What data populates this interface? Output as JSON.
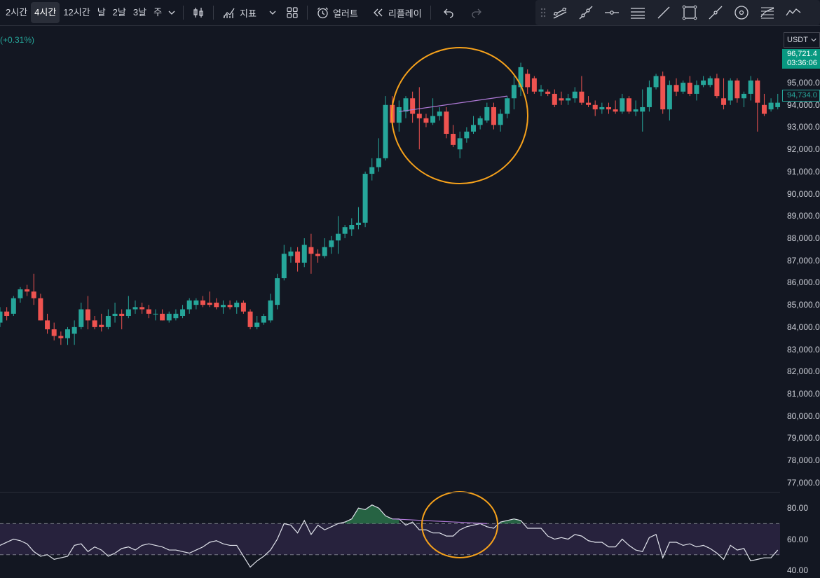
{
  "toolbar": {
    "timeframes": [
      "2시간",
      "4시간",
      "12시간",
      "날",
      "2날",
      "3날",
      "주"
    ],
    "active_timeframe": "4시간",
    "indicators_label": "지표",
    "alerts_label": "얼러트",
    "replay_label": "리플레이"
  },
  "drawing_tools": [
    "trend-line-icon",
    "ray-icon",
    "horizontal-ray-icon",
    "parallel-channel-icon",
    "line-icon",
    "rectangle-icon",
    "path-icon",
    "circle-target-icon",
    "fib-icon",
    "brush-icon"
  ],
  "header": {
    "change": "(+0.31%)"
  },
  "currency": {
    "selected": "USDT"
  },
  "price_labels": {
    "last_price": "96,721.4",
    "countdown": "03:36:06",
    "current_price": "94,734.0"
  },
  "colors": {
    "up": "#26a69a",
    "down": "#ef5350",
    "circle": "#f7a21b",
    "divergence": "#b07ad8",
    "rsi_line": "#e0e3eb",
    "rsi_band": "#2a2440"
  },
  "chart_data": {
    "type": "candlestick",
    "y_axis_ticks": [
      "95,000.0",
      "94,000.0",
      "93,000.0",
      "92,000.0",
      "91,000.0",
      "90,000.0",
      "89,000.0",
      "88,000.0",
      "87,000.0",
      "86,000.0",
      "85,000.0",
      "84,000.0",
      "83,000.0",
      "82,000.0",
      "81,000.0",
      "80,000.0",
      "79,000.0",
      "78,000.0",
      "77,000.0"
    ],
    "ylim": [
      76900,
      96800
    ],
    "candles": [
      [
        84200,
        84900,
        84000,
        84700
      ],
      [
        84700,
        84900,
        84300,
        84500
      ],
      [
        84600,
        85400,
        84500,
        85300
      ],
      [
        85300,
        85800,
        85100,
        85700
      ],
      [
        85700,
        85900,
        85400,
        85600
      ],
      [
        85600,
        86400,
        85000,
        85300
      ],
      [
        85300,
        85500,
        84300,
        84300
      ],
      [
        84300,
        84600,
        83700,
        83900
      ],
      [
        83900,
        84200,
        83400,
        83600
      ],
      [
        83600,
        83800,
        83200,
        83500
      ],
      [
        83500,
        84000,
        83200,
        83900
      ],
      [
        83700,
        84300,
        83200,
        84000
      ],
      [
        84000,
        85100,
        83900,
        84800
      ],
      [
        84800,
        85400,
        83900,
        84300
      ],
      [
        84300,
        84500,
        83900,
        84000
      ],
      [
        84100,
        84600,
        83800,
        84000
      ],
      [
        84000,
        84800,
        83900,
        84500
      ],
      [
        84500,
        85100,
        84200,
        84600
      ],
      [
        84600,
        84800,
        83900,
        84500
      ],
      [
        84500,
        85400,
        84400,
        84800
      ],
      [
        84800,
        85200,
        84600,
        84900
      ],
      [
        84900,
        85100,
        84600,
        84800
      ],
      [
        84800,
        85000,
        84400,
        84600
      ],
      [
        84600,
        84800,
        84300,
        84600
      ],
      [
        84600,
        84800,
        84300,
        84300
      ],
      [
        84300,
        84700,
        84200,
        84600
      ],
      [
        84400,
        84800,
        84300,
        84600
      ],
      [
        84500,
        85000,
        84400,
        84800
      ],
      [
        84800,
        85300,
        84600,
        85200
      ],
      [
        85000,
        85300,
        84800,
        85200
      ],
      [
        85200,
        85400,
        84900,
        85000
      ],
      [
        85100,
        85600,
        84900,
        85000
      ],
      [
        85100,
        85300,
        84800,
        84900
      ],
      [
        84900,
        85200,
        84600,
        85000
      ],
      [
        85000,
        85200,
        84800,
        84900
      ],
      [
        84900,
        85200,
        84600,
        85100
      ],
      [
        85100,
        85200,
        84600,
        84700
      ],
      [
        84700,
        84800,
        83900,
        84000
      ],
      [
        84000,
        84500,
        83900,
        84200
      ],
      [
        84200,
        84600,
        84100,
        84500
      ],
      [
        84300,
        85500,
        84200,
        85200
      ],
      [
        85000,
        86400,
        84800,
        86200
      ],
      [
        86200,
        87700,
        86100,
        87300
      ],
      [
        87200,
        87600,
        86900,
        87400
      ],
      [
        87400,
        87600,
        86500,
        86900
      ],
      [
        86900,
        88000,
        86700,
        87700
      ],
      [
        87600,
        88200,
        86400,
        87300
      ],
      [
        87300,
        87500,
        86900,
        87200
      ],
      [
        87200,
        88000,
        87100,
        87600
      ],
      [
        87600,
        88100,
        87300,
        87900
      ],
      [
        87900,
        89000,
        87300,
        88200
      ],
      [
        88200,
        88600,
        88000,
        88500
      ],
      [
        88400,
        88900,
        88100,
        88600
      ],
      [
        88600,
        89400,
        88400,
        88700
      ],
      [
        88700,
        91000,
        88500,
        90900
      ],
      [
        90900,
        91600,
        90600,
        91200
      ],
      [
        91200,
        92500,
        91000,
        91600
      ],
      [
        91600,
        94400,
        91500,
        94000
      ],
      [
        94000,
        94400,
        93000,
        93200
      ],
      [
        93200,
        94200,
        92800,
        93900
      ],
      [
        93700,
        94400,
        93400,
        94300
      ],
      [
        94300,
        94600,
        93200,
        93600
      ],
      [
        93600,
        94800,
        92000,
        93400
      ],
      [
        93400,
        93600,
        93000,
        93200
      ],
      [
        93200,
        94300,
        93100,
        93500
      ],
      [
        93500,
        93900,
        93300,
        93700
      ],
      [
        93700,
        93900,
        92500,
        92700
      ],
      [
        92700,
        93100,
        92100,
        92200
      ],
      [
        92000,
        92800,
        91600,
        92500
      ],
      [
        92500,
        93000,
        92300,
        92800
      ],
      [
        92800,
        93500,
        92700,
        93100
      ],
      [
        93100,
        93500,
        92900,
        93400
      ],
      [
        93300,
        94100,
        93200,
        93900
      ],
      [
        93900,
        94100,
        92900,
        93100
      ],
      [
        93100,
        93800,
        92800,
        93600
      ],
      [
        93600,
        94400,
        93400,
        94300
      ],
      [
        94300,
        95300,
        93800,
        94900
      ],
      [
        94800,
        95900,
        94400,
        95700
      ],
      [
        95400,
        95600,
        94500,
        94800
      ],
      [
        95200,
        95300,
        94500,
        94600
      ],
      [
        94600,
        94900,
        94400,
        94700
      ],
      [
        94600,
        94700,
        94400,
        94500
      ],
      [
        94500,
        94700,
        93900,
        94000
      ],
      [
        94300,
        94600,
        94000,
        94200
      ],
      [
        94200,
        94500,
        94000,
        94300
      ],
      [
        94300,
        94800,
        94100,
        94600
      ],
      [
        94600,
        95300,
        94000,
        94100
      ],
      [
        94100,
        94400,
        93900,
        94000
      ],
      [
        94000,
        94200,
        93500,
        93800
      ],
      [
        93800,
        94100,
        93600,
        93900
      ],
      [
        93900,
        94100,
        93600,
        93800
      ],
      [
        93800,
        94200,
        93600,
        93700
      ],
      [
        93700,
        94500,
        93600,
        94300
      ],
      [
        94300,
        94400,
        93600,
        93700
      ],
      [
        93700,
        94200,
        93500,
        93800
      ],
      [
        93700,
        94700,
        92800,
        93900
      ],
      [
        93900,
        95100,
        93700,
        94800
      ],
      [
        94800,
        95400,
        94700,
        95300
      ],
      [
        95300,
        95500,
        93600,
        93800
      ],
      [
        93800,
        95100,
        93300,
        94900
      ],
      [
        94900,
        95200,
        94400,
        94600
      ],
      [
        94600,
        95100,
        94500,
        95000
      ],
      [
        95000,
        95300,
        94400,
        94500
      ],
      [
        94500,
        95100,
        94200,
        94900
      ],
      [
        94900,
        95300,
        94800,
        95100
      ],
      [
        94900,
        95300,
        94800,
        95200
      ],
      [
        95200,
        95400,
        94300,
        94400
      ],
      [
        94300,
        95200,
        93800,
        94000
      ],
      [
        94200,
        95200,
        94000,
        95100
      ],
      [
        95100,
        95200,
        94100,
        94300
      ],
      [
        94300,
        94600,
        93900,
        94500
      ],
      [
        94500,
        95300,
        94200,
        95100
      ],
      [
        95100,
        95200,
        92800,
        94100
      ],
      [
        94000,
        94500,
        93500,
        93600
      ],
      [
        93800,
        94300,
        93700,
        94100
      ],
      [
        93900,
        94500,
        93800,
        94100
      ],
      [
        94100,
        94900,
        94000,
        94800
      ]
    ],
    "rsi": {
      "ticks": [
        "80.00",
        "60.00",
        "40.00"
      ],
      "ylim": [
        35,
        90
      ],
      "bands": [
        70,
        50
      ],
      "values": [
        56,
        58,
        60,
        59,
        57,
        52,
        49,
        50,
        47,
        48,
        49,
        56,
        57,
        52,
        55,
        53,
        49,
        51,
        54,
        55,
        53,
        56,
        57,
        56,
        55,
        53,
        53,
        52,
        51,
        53,
        55,
        58,
        59,
        57,
        56,
        56,
        49,
        42,
        46,
        49,
        53,
        60,
        70,
        69,
        64,
        72,
        63,
        69,
        66,
        68,
        70,
        71,
        73,
        80,
        79,
        82,
        80,
        75,
        73,
        73,
        69,
        71,
        66,
        66,
        64,
        64,
        62,
        62,
        66,
        68,
        69,
        70,
        68,
        67,
        71,
        72,
        73,
        72,
        67,
        67,
        67,
        62,
        60,
        61,
        60,
        63,
        62,
        59,
        58,
        58,
        55,
        55,
        60,
        56,
        53,
        52,
        61,
        63,
        48,
        58,
        58,
        56,
        57,
        55,
        56,
        54,
        51,
        47,
        56,
        53,
        54,
        46,
        47,
        48,
        48,
        53
      ]
    },
    "divergence_price": {
      "from": [
        59,
        93700
      ],
      "to": [
        75,
        94400
      ]
    },
    "divergence_rsi": {
      "from": [
        58,
        73
      ],
      "to": [
        72,
        70
      ]
    }
  }
}
